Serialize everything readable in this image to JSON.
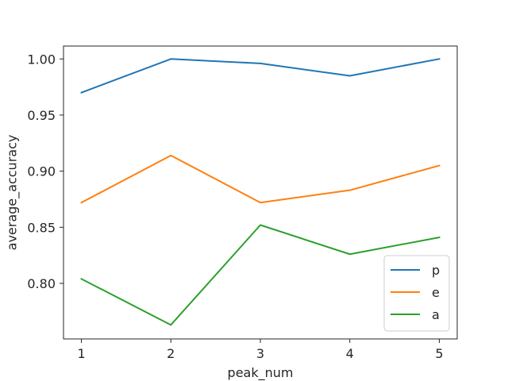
{
  "chart_data": {
    "type": "line",
    "title": "",
    "xlabel": "peak_num",
    "ylabel": "average_accuracy",
    "x": [
      1,
      2,
      3,
      4,
      5
    ],
    "xticks": [
      "1",
      "2",
      "3",
      "4",
      "5"
    ],
    "yticks": [
      "0.80",
      "0.85",
      "0.90",
      "0.95",
      "1.00"
    ],
    "xlim": [
      0.8,
      5.2
    ],
    "ylim": [
      0.7505,
      1.0115
    ],
    "grid": false,
    "legend_position": "lower-right",
    "series": [
      {
        "name": "p",
        "color": "#1f77b4",
        "values": [
          0.97,
          1.0,
          0.996,
          0.985,
          1.0
        ]
      },
      {
        "name": "e",
        "color": "#ff7f0e",
        "values": [
          0.872,
          0.914,
          0.872,
          0.883,
          0.905
        ]
      },
      {
        "name": "a",
        "color": "#2ca02c",
        "values": [
          0.804,
          0.763,
          0.852,
          0.826,
          0.841
        ]
      }
    ]
  }
}
